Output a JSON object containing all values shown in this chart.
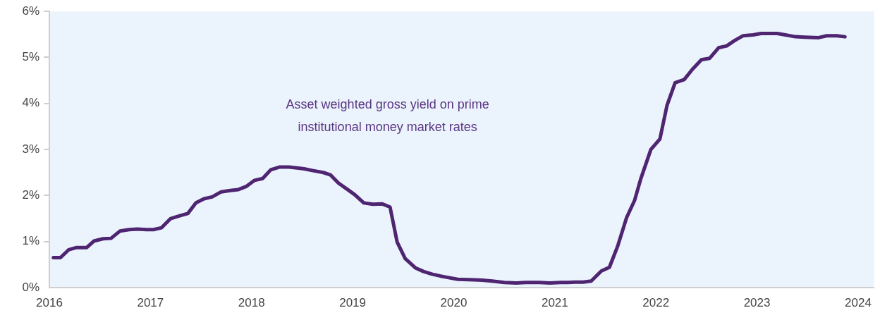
{
  "chart_data": {
    "type": "line",
    "x": [
      2016.04,
      2016.11,
      2016.19,
      2016.27,
      2016.37,
      2016.44,
      2016.53,
      2016.61,
      2016.7,
      2016.79,
      2016.87,
      2016.96,
      2017.03,
      2017.11,
      2017.2,
      2017.29,
      2017.37,
      2017.45,
      2017.53,
      2017.61,
      2017.7,
      2017.79,
      2017.87,
      2017.95,
      2018.03,
      2018.11,
      2018.19,
      2018.28,
      2018.37,
      2018.45,
      2018.52,
      2018.61,
      2018.71,
      2018.78,
      2018.86,
      2018.95,
      2019.02,
      2019.11,
      2019.2,
      2019.29,
      2019.37,
      2019.44,
      2019.52,
      2019.62,
      2019.7,
      2019.79,
      2019.87,
      2019.94,
      2020.04,
      2020.2,
      2020.28,
      2020.38,
      2020.5,
      2020.62,
      2020.71,
      2020.85,
      2020.95,
      2021.06,
      2021.13,
      2021.2,
      2021.28,
      2021.36,
      2021.46,
      2021.54,
      2021.62,
      2021.71,
      2021.79,
      2021.85,
      2021.95,
      2022.04,
      2022.11,
      2022.19,
      2022.28,
      2022.36,
      2022.45,
      2022.53,
      2022.62,
      2022.7,
      2022.78,
      2022.86,
      2022.96,
      2023.04,
      2023.2,
      2023.28,
      2023.38,
      2023.47,
      2023.61,
      2023.69,
      2023.79,
      2023.87
    ],
    "series": [
      {
        "color": "#4f2572",
        "values": [
          0.65,
          0.65,
          0.82,
          0.87,
          0.87,
          1.01,
          1.06,
          1.07,
          1.23,
          1.26,
          1.27,
          1.26,
          1.26,
          1.3,
          1.5,
          1.56,
          1.61,
          1.84,
          1.93,
          1.97,
          2.08,
          2.11,
          2.13,
          2.2,
          2.33,
          2.37,
          2.56,
          2.62,
          2.62,
          2.6,
          2.58,
          2.54,
          2.5,
          2.45,
          2.27,
          2.13,
          2.02,
          1.84,
          1.81,
          1.82,
          1.75,
          0.99,
          0.63,
          0.43,
          0.35,
          0.29,
          0.25,
          0.22,
          0.18,
          0.17,
          0.16,
          0.14,
          0.11,
          0.1,
          0.11,
          0.11,
          0.1,
          0.11,
          0.11,
          0.12,
          0.12,
          0.14,
          0.36,
          0.44,
          0.89,
          1.52,
          1.9,
          2.36,
          3.0,
          3.23,
          3.96,
          4.45,
          4.52,
          4.74,
          4.95,
          4.98,
          5.21,
          5.25,
          5.37,
          5.47,
          5.49,
          5.52,
          5.52,
          5.49,
          5.45,
          5.44,
          5.43,
          5.47,
          5.47,
          5.45
        ]
      }
    ],
    "xlim": [
      2016,
      2024.16
    ],
    "xticks": [
      2016,
      2017,
      2018,
      2019,
      2020,
      2021,
      2022,
      2023,
      2024
    ],
    "ylim": [
      0,
      6
    ],
    "yticks": [
      {
        "value": 0,
        "label": "0%"
      },
      {
        "value": 1,
        "label": "1%"
      },
      {
        "value": 2,
        "label": "2%"
      },
      {
        "value": 3,
        "label": "3%"
      },
      {
        "value": 4,
        "label": "4%"
      },
      {
        "value": 5,
        "label": "5%"
      },
      {
        "value": 6,
        "label": "6%"
      }
    ],
    "grid": false,
    "legend": false,
    "marker": "none",
    "line_style": "solid",
    "annotations": [
      "Asset weighted gross yield on prime institutional money market rates"
    ]
  }
}
